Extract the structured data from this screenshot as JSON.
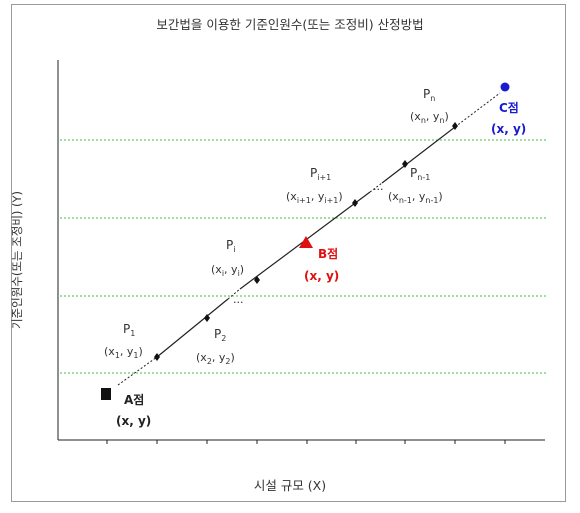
{
  "title": "보간법을 이용한 기준인원수(또는 조정비) 산정방법",
  "y_axis_label": "기준인원수(또는 조정비) (Y)",
  "x_axis_label": "시설 규모 (X)",
  "colors": {
    "point_a": "#111111",
    "point_b": "#e01010",
    "point_c": "#1a1ad0",
    "gridline": "#44bb44",
    "line": "#111111"
  },
  "ellipsis": "...",
  "points": [
    {
      "id": "A",
      "label": "A점",
      "coords": "(x, y)"
    },
    {
      "id": "B",
      "label": "B점",
      "coords": "(x, y)"
    },
    {
      "id": "C",
      "label": "C점",
      "coords": "(x, y)"
    }
  ],
  "series_points": [
    {
      "name": "P",
      "sub": "1",
      "coords": {
        "xs": "1",
        "ys": "1"
      }
    },
    {
      "name": "P",
      "sub": "2",
      "coords": {
        "xs": "2",
        "ys": "2"
      }
    },
    {
      "name": "P",
      "sub": "i",
      "coords": {
        "xs": "i",
        "ys": "i"
      }
    },
    {
      "name": "P",
      "sub": "i+1",
      "coords": {
        "xs": "i+1",
        "ys": "i+1"
      }
    },
    {
      "name": "P",
      "sub": "n-1",
      "coords": {
        "xs": "n-1",
        "ys": "n-1"
      }
    },
    {
      "name": "P",
      "sub": "n",
      "coords": {
        "xs": "n",
        "ys": "n"
      }
    }
  ]
}
